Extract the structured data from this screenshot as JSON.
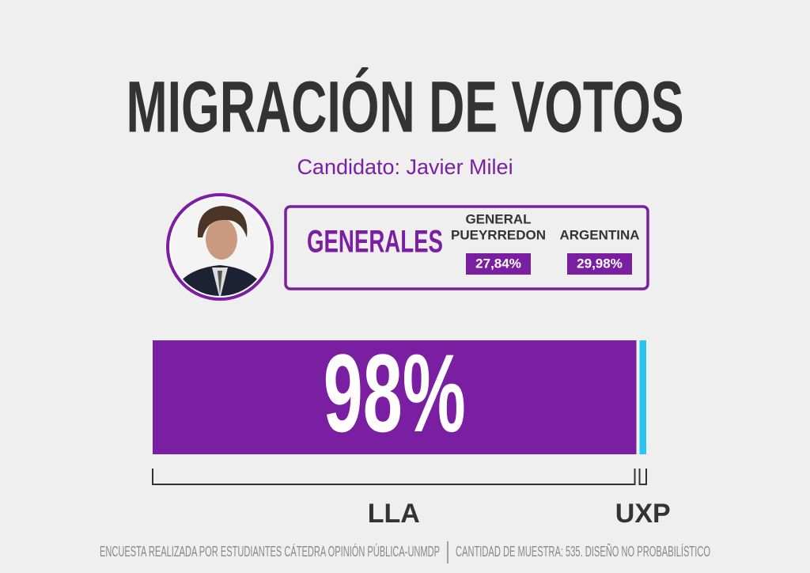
{
  "chart_data": {
    "type": "stacked_bar",
    "title": "MIGRACIÓN DE VOTOS",
    "subtitle": "Candidato: Javier Milei",
    "xlim": [
      0,
      100
    ],
    "series": [
      {
        "name": "LLA",
        "color": "#7b1fa2",
        "values": [
          98
        ],
        "value_labels": [
          "98%"
        ]
      },
      {
        "name": "UXP",
        "color": "#29c5f0",
        "values": [
          2
        ]
      }
    ]
  },
  "panel": {
    "title": "GENERALES",
    "columns": [
      {
        "label_lines": [
          "GENERAL",
          "PUEYRREDON"
        ],
        "value": "27,84%"
      },
      {
        "label_lines": [
          "ARGENTINA"
        ],
        "value": "29,98%"
      }
    ]
  },
  "footer": {
    "left": "ENCUESTA REALIZADA POR ESTUDIANTES CÁTEDRA OPINIÓN PÚBLICA-UNMDP",
    "right": "CANTIDAD DE MUESTRA: 535. DISEÑO NO PROBABILÍSTICO"
  }
}
